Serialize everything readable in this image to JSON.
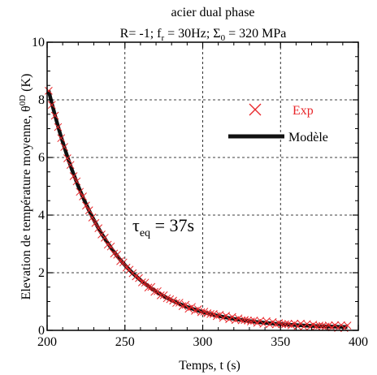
{
  "chart_data": {
    "type": "scatter",
    "title_line1": "acier dual phase",
    "title_line2": {
      "R": "R= -1; f",
      "fsub": "r",
      "freq": " = 30Hz; Σ",
      "sigsub": "0",
      "sig": " = 320 MPa"
    },
    "xlabel": "Temps, t (s)",
    "ylabel": {
      "main": "Elevation de température moyenne, θ",
      "sup": "0D",
      "unit": " (K)"
    },
    "xlim": [
      200,
      400
    ],
    "ylim": [
      0,
      10
    ],
    "x_ticks": [
      200,
      250,
      300,
      350,
      400
    ],
    "y_ticks": [
      0,
      2,
      4,
      6,
      8,
      10
    ],
    "grid": true,
    "legend_position": "top-right",
    "annotation": {
      "symbol": "τ",
      "sub": "eq",
      "text": " = 37s"
    },
    "series": [
      {
        "name": "Exp",
        "marker": "x",
        "color": "#e8262a",
        "model": {
          "a": 8.2,
          "tau": 37,
          "c": 0.08,
          "x_start": 201,
          "x_end": 393,
          "step": 2
        }
      },
      {
        "name": "Modèle",
        "kind": "line",
        "color": "#111111",
        "model": {
          "a": 8.25,
          "tau": 37,
          "c": 0.07,
          "x_start": 201,
          "x_end": 393
        }
      }
    ]
  }
}
